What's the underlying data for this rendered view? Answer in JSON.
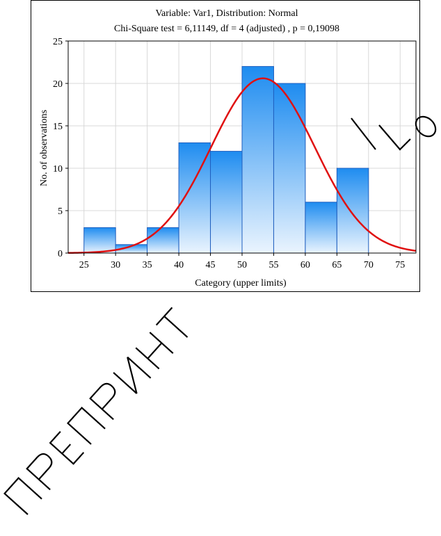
{
  "chart_data": {
    "type": "bar",
    "title": "Variable: Var1, Distribution: Normal",
    "subtitle": "Chi-Square test = 6,11149, df = 4 (adjusted) , p = 0,19098",
    "xlabel": "Category (upper limits)",
    "ylabel": "No. of observations",
    "bins": [
      {
        "from": 25,
        "to": 30,
        "value": 3
      },
      {
        "from": 30,
        "to": 35,
        "value": 1
      },
      {
        "from": 35,
        "to": 40,
        "value": 3
      },
      {
        "from": 40,
        "to": 45,
        "value": 13
      },
      {
        "from": 45,
        "to": 50,
        "value": 12
      },
      {
        "from": 50,
        "to": 55,
        "value": 22
      },
      {
        "from": 55,
        "to": 60,
        "value": 20
      },
      {
        "from": 60,
        "to": 65,
        "value": 6
      },
      {
        "from": 65,
        "to": 70,
        "value": 10
      }
    ],
    "curve": {
      "type": "normal",
      "peak": 20.6,
      "mean": 53.3,
      "sd": 8.2
    },
    "xlim": [
      22.5,
      77.5
    ],
    "ylim": [
      0,
      25
    ],
    "xticks": [
      25,
      30,
      35,
      40,
      45,
      50,
      55,
      60,
      65,
      70,
      75
    ],
    "yticks": [
      0,
      5,
      10,
      15,
      20,
      25
    ],
    "grid": true,
    "colors": {
      "bar_top": "#1e8cf0",
      "bar_bottom": "#eaf4fe",
      "bar_stroke": "#1f5fbf",
      "curve": "#e01010",
      "grid": "#d8d8d8"
    }
  },
  "watermark": {
    "text": "ПРЕПРИНТ ... О"
  }
}
